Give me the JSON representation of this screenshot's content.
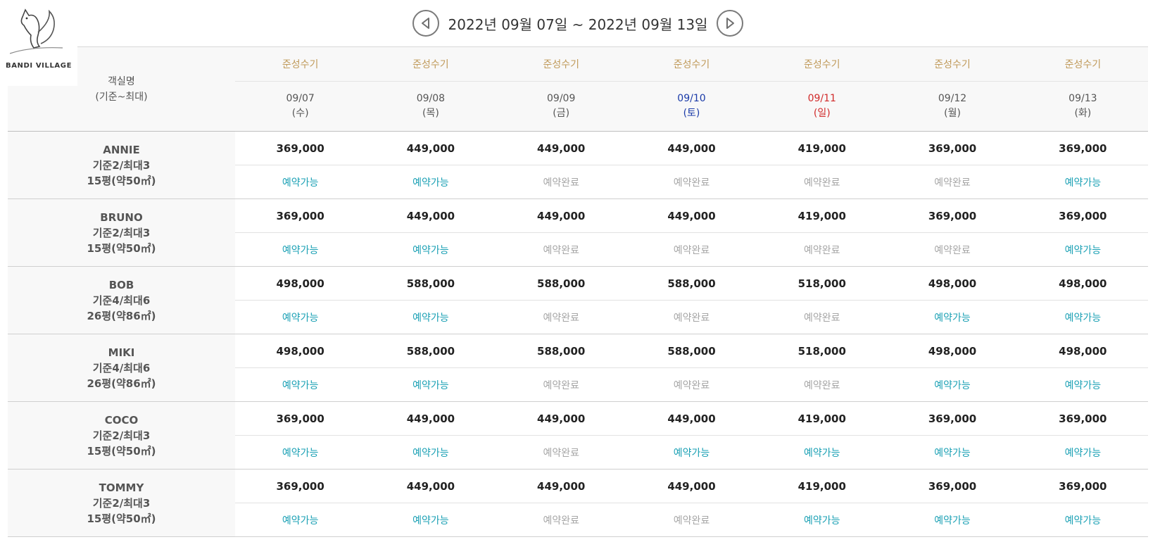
{
  "logo": {
    "text": "BANDI VILLAGE"
  },
  "nav": {
    "range": "2022년 09월 07일 ~ 2022년 09월 13일",
    "prev_icon": "circle-arrow-left-icon",
    "next_icon": "circle-arrow-right-icon"
  },
  "header": {
    "room_label_line1": "객실명",
    "room_label_line2": "(기준~최대)",
    "days": [
      {
        "tag": "준성수기",
        "date": "09/07",
        "dow": "(수)",
        "kind": "weekday"
      },
      {
        "tag": "준성수기",
        "date": "09/08",
        "dow": "(목)",
        "kind": "weekday"
      },
      {
        "tag": "준성수기",
        "date": "09/09",
        "dow": "(금)",
        "kind": "weekday"
      },
      {
        "tag": "준성수기",
        "date": "09/10",
        "dow": "(토)",
        "kind": "sat"
      },
      {
        "tag": "준성수기",
        "date": "09/11",
        "dow": "(일)",
        "kind": "sun"
      },
      {
        "tag": "준성수기",
        "date": "09/12",
        "dow": "(월)",
        "kind": "weekday"
      },
      {
        "tag": "준성수기",
        "date": "09/13",
        "dow": "(화)",
        "kind": "weekday"
      }
    ]
  },
  "colors": {
    "available": "#1aa0b4",
    "booked": "#a6a6a6",
    "season": "#c09a5a",
    "saturday": "#1a3aa8",
    "sunday": "#d12a2a"
  },
  "rooms": [
    {
      "name": "ANNIE",
      "capacity": "기준2/최대3",
      "size": "15평(약50㎡)",
      "prices": [
        "369,000",
        "449,000",
        "449,000",
        "449,000",
        "419,000",
        "369,000",
        "369,000"
      ],
      "status": [
        "예약가능",
        "예약가능",
        "예약완료",
        "예약완료",
        "예약완료",
        "예약완료",
        "예약가능"
      ]
    },
    {
      "name": "BRUNO",
      "capacity": "기준2/최대3",
      "size": "15평(약50㎡)",
      "prices": [
        "369,000",
        "449,000",
        "449,000",
        "449,000",
        "419,000",
        "369,000",
        "369,000"
      ],
      "status": [
        "예약가능",
        "예약가능",
        "예약완료",
        "예약완료",
        "예약완료",
        "예약완료",
        "예약가능"
      ]
    },
    {
      "name": "BOB",
      "capacity": "기준4/최대6",
      "size": "26평(약86㎡)",
      "prices": [
        "498,000",
        "588,000",
        "588,000",
        "588,000",
        "518,000",
        "498,000",
        "498,000"
      ],
      "status": [
        "예약가능",
        "예약가능",
        "예약완료",
        "예약완료",
        "예약완료",
        "예약가능",
        "예약가능"
      ]
    },
    {
      "name": "MIKI",
      "capacity": "기준4/최대6",
      "size": "26평(약86㎡)",
      "prices": [
        "498,000",
        "588,000",
        "588,000",
        "588,000",
        "518,000",
        "498,000",
        "498,000"
      ],
      "status": [
        "예약가능",
        "예약가능",
        "예약완료",
        "예약완료",
        "예약완료",
        "예약가능",
        "예약가능"
      ]
    },
    {
      "name": "COCO",
      "capacity": "기준2/최대3",
      "size": "15평(약50㎡)",
      "prices": [
        "369,000",
        "449,000",
        "449,000",
        "449,000",
        "419,000",
        "369,000",
        "369,000"
      ],
      "status": [
        "예약가능",
        "예약가능",
        "예약완료",
        "예약가능",
        "예약가능",
        "예약가능",
        "예약가능"
      ]
    },
    {
      "name": "TOMMY",
      "capacity": "기준2/최대3",
      "size": "15평(약50㎡)",
      "prices": [
        "369,000",
        "449,000",
        "449,000",
        "449,000",
        "419,000",
        "369,000",
        "369,000"
      ],
      "status": [
        "예약가능",
        "예약가능",
        "예약완료",
        "예약완료",
        "예약가능",
        "예약가능",
        "예약가능"
      ]
    }
  ]
}
